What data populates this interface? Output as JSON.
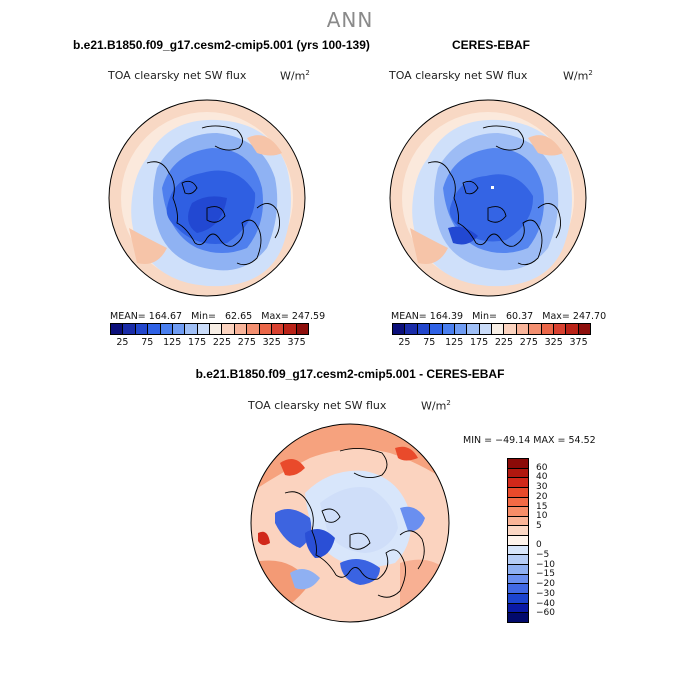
{
  "season_title": "ANN",
  "panels": {
    "model": {
      "header": "b.e21.B1850.f09_g17.cesm2-cmip5.001 (yrs 100-139)",
      "variable": "TOA clearsky net SW flux",
      "units_base": "W/m",
      "units_exp": "2",
      "mean_label": "MEAN=",
      "mean_value": "164.67",
      "min_label": "Min=",
      "min_value": "62.65",
      "max_label": "Max=",
      "max_value": "247.59"
    },
    "obs": {
      "header": "CERES-EBAF",
      "variable": "TOA clearsky net SW flux",
      "units_base": "W/m",
      "units_exp": "2",
      "mean_label": "MEAN=",
      "mean_value": "164.39",
      "min_label": "Min=",
      "min_value": "60.37",
      "max_label": "Max=",
      "max_value": "247.70"
    },
    "diff": {
      "header": "b.e21.B1850.f09_g17.cesm2-cmip5.001 - CERES-EBAF",
      "variable": "TOA clearsky net SW flux",
      "units_base": "W/m",
      "units_exp": "2",
      "minmax_text": "MIN = −49.14  MAX =  54.52"
    }
  },
  "abs_colorbar": {
    "colors": [
      "#0b0f7a",
      "#1a2ca8",
      "#2347cc",
      "#2f62e6",
      "#4a7fef",
      "#6f9cf3",
      "#9fbff6",
      "#cadcf9",
      "#f7eee5",
      "#fbd3bf",
      "#f8b49a",
      "#f38f70",
      "#ea6648",
      "#d84130",
      "#ba2318",
      "#8e0f0c"
    ],
    "labels": [
      "25",
      "75",
      "125",
      "175",
      "225",
      "275",
      "325",
      "375"
    ]
  },
  "diff_colorbar": {
    "colors": [
      "#8b0a08",
      "#b0170f",
      "#d1281a",
      "#e94a2b",
      "#f36a45",
      "#f78d68",
      "#fab497",
      "#fcd7c4",
      "#fff4ec",
      "#d8e6fb",
      "#b6cdf6",
      "#8fb0f2",
      "#6a8ff0",
      "#4169e5",
      "#1c44cf",
      "#0a1aa6",
      "#020a6c"
    ],
    "labels": [
      "60",
      "40",
      "30",
      "20",
      "15",
      "10",
      "5",
      "0",
      "−5",
      "−10",
      "−15",
      "−20",
      "−30",
      "−40",
      "−60"
    ]
  }
}
